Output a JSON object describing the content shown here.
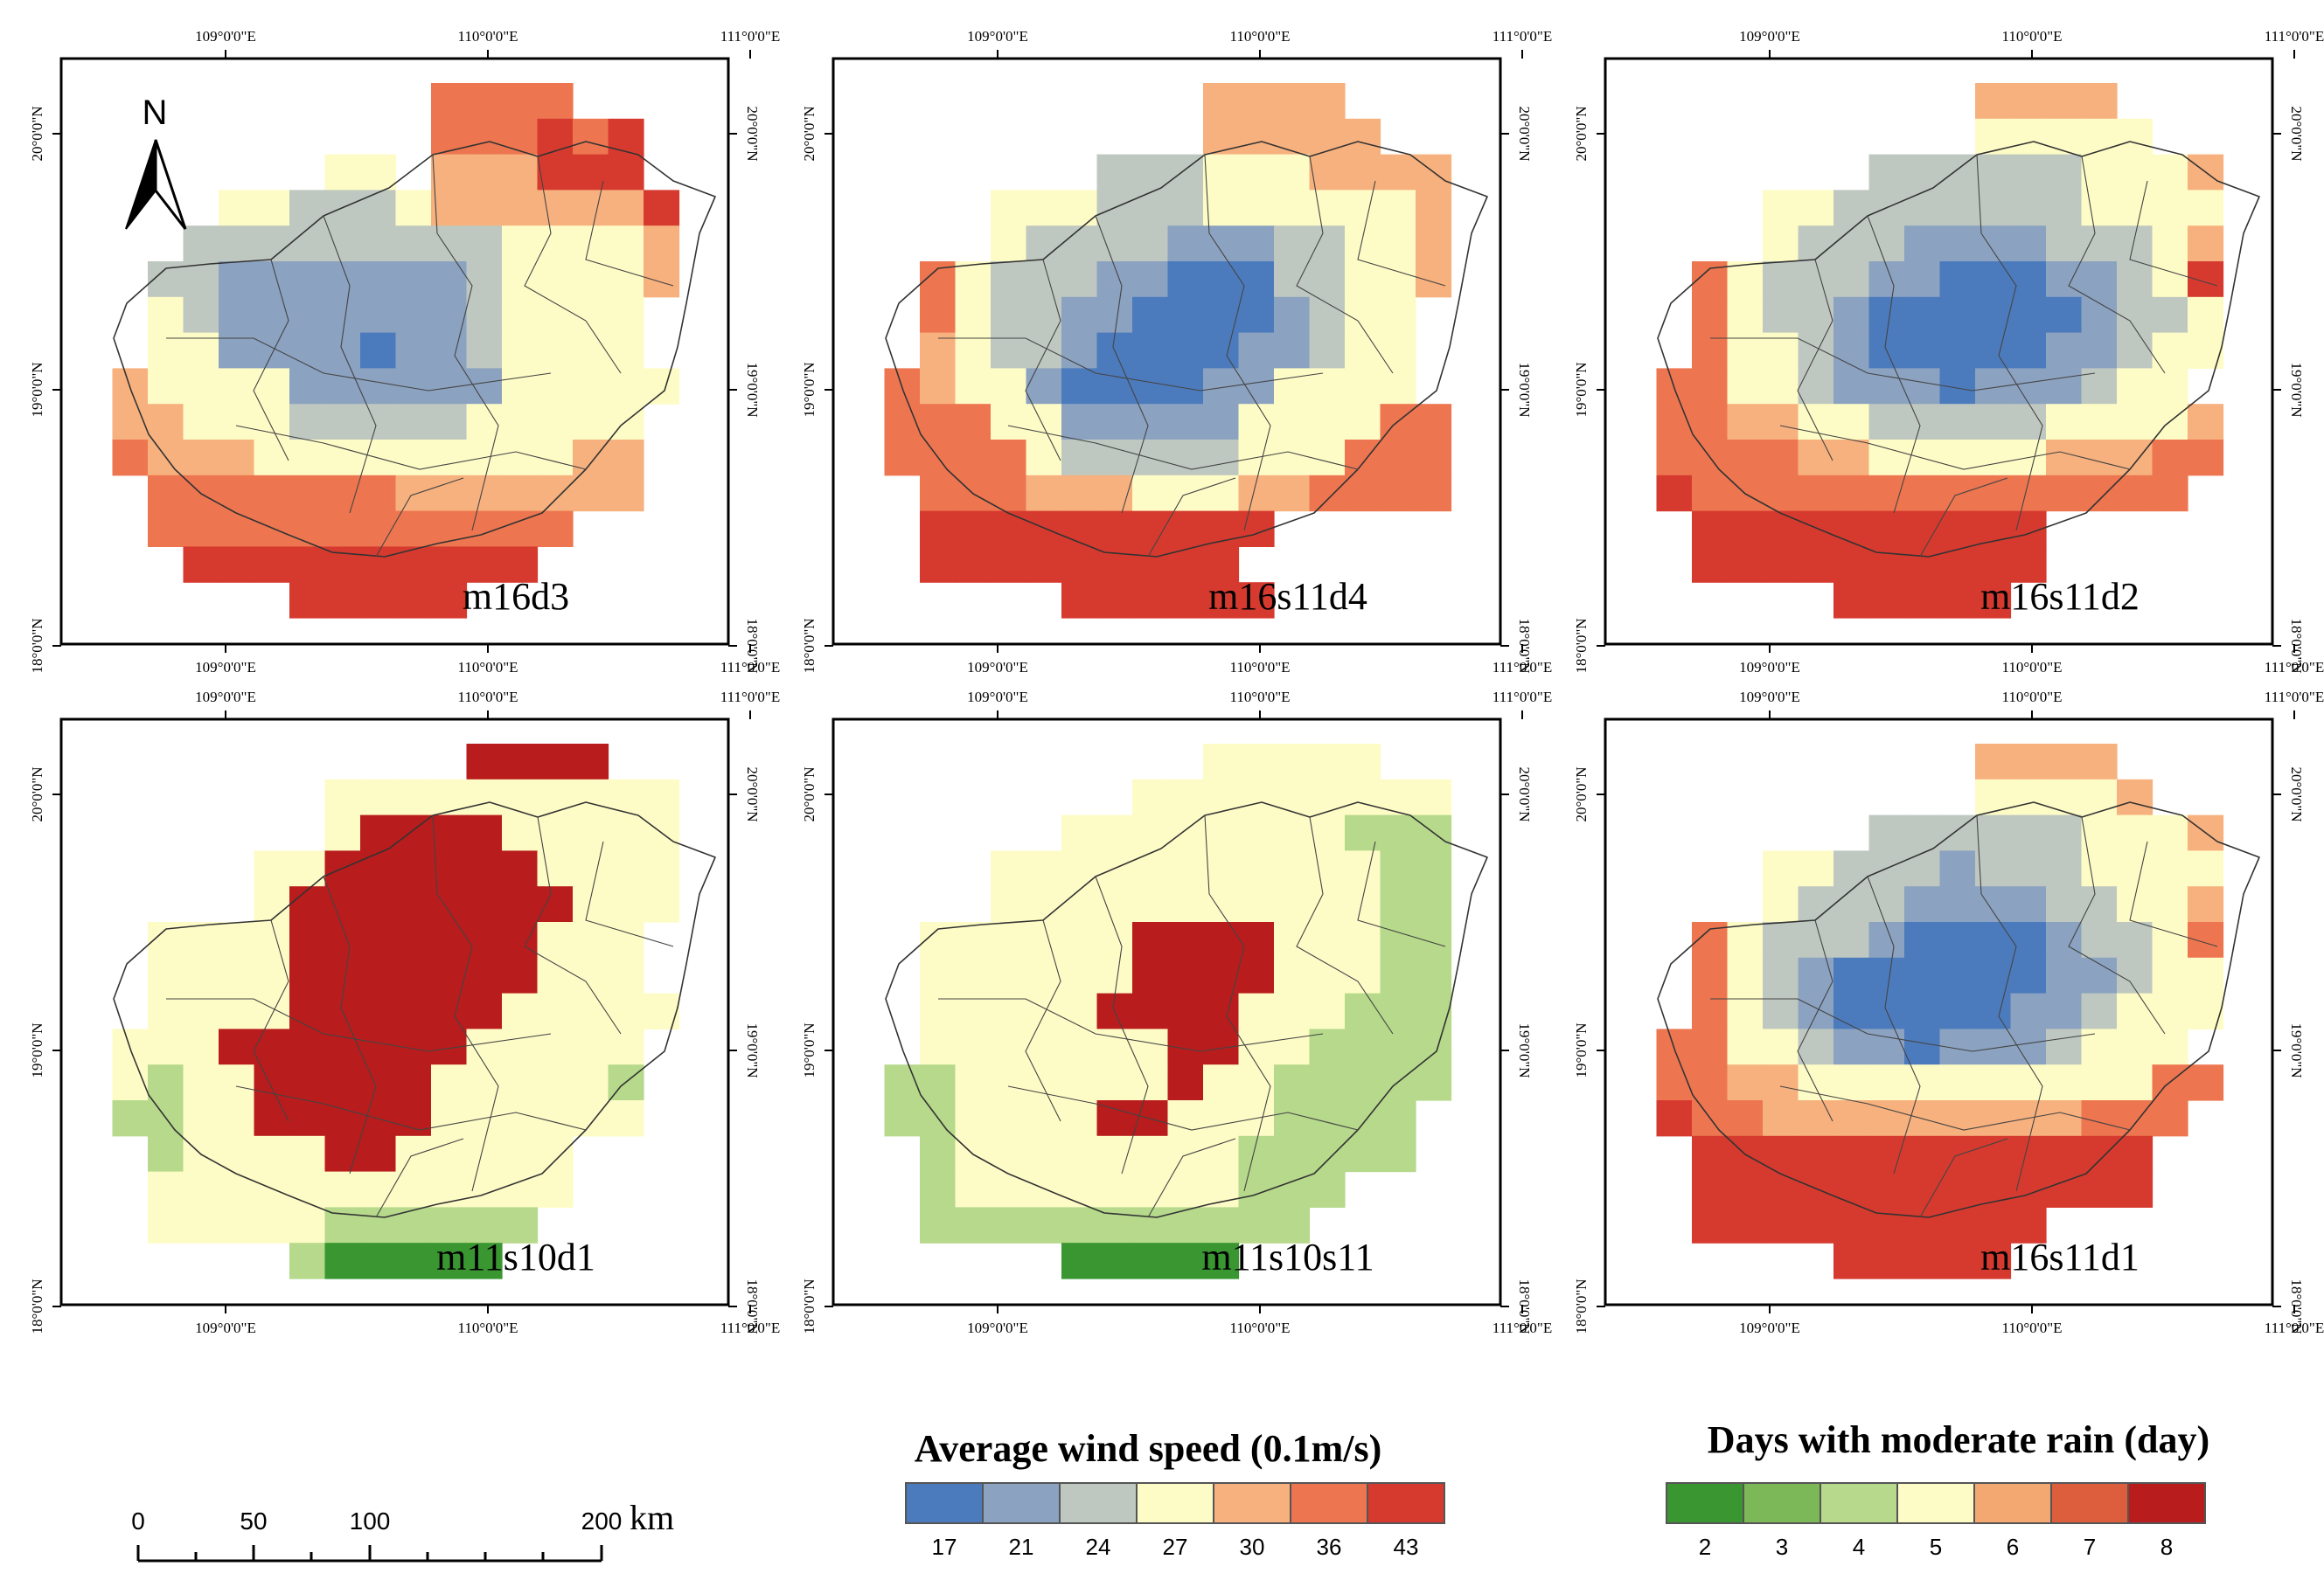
{
  "north_arrow": {
    "label": "N"
  },
  "axes": {
    "lon_labels": [
      "109°0'0\"E",
      "110°0'0\"E",
      "111°0'0\"E"
    ],
    "lat_labels": [
      "18°0'0\"N",
      "19°0'0\"N",
      "20°0'0\"N"
    ]
  },
  "panels": [
    {
      "label": "m16d3",
      "scale": "wind",
      "grid": [
        "..........OOOO...",
        "..........OOOROR.",
        ".......YY.PPPRRR.",
        "....YYGGGYPPPPPPR",
        "...GGGGGGGGGYYYYP",
        "..GGBBBBBBBGYYYYP",
        "..YGBBBBBBBGYYYY.",
        "..YYBBBBDBBGYYYY.",
        ".PYYYYBBBBBBYYYYY",
        ".PPYYYGGGGGYYYYY.",
        ".OPPPYYYYYYYYYPP.",
        "..OOOOOOOPPPPPPP.",
        "..OOOOOOOOOOOO...",
        "...RRRRRRRRRR....",
        "......RRRRR......"
      ]
    },
    {
      "label": "m16s11d4",
      "scale": "wind",
      "grid": [
        "..........PPPP...",
        "..........PPPPP..",
        ".......GGGYYYPPPP",
        "....YYYGGGYYYYYYP",
        "....YGGGGBBBGGYYP",
        "..OYGGGBBDDDGGYYP",
        "..OYGGBBDDDDBGYY.",
        "..PYGGBDDDDBBGYY.",
        ".OPYYBDDDDBBYYYY.",
        ".OOOYYBBBBBYYYYOO",
        ".OOOOYGGGGGYYYOOO",
        "..OOOPPPYYYPPOOOO",
        "..RRRRRRRRRR.....",
        "..RRRRRRRRR......",
        "......RRRRRR....."
      ]
    },
    {
      "label": "m16s11d2",
      "scale": "wind",
      "grid": [
        "..........PPPP...",
        "..........YYYYY..",
        ".......GGGGGGYYYP",
        "....YYGGGGGGGYYYY",
        "....YGGGBBBBGGGYP",
        "..OYGGGBBDDDBBGYR",
        "..OYGGBDDDDDDBGGY",
        "..OYYGBDDDDDBBGYY",
        ".OOYYGBBBDBBBGYY.",
        ".OOPPYYGGGGGYYYYP",
        ".OOOOPPYYYYYPPPOO",
        ".ROOOOOOOOOOOOOO.",
        "..RRRRRRRRRR.....",
        "..RRRRRRRRRR.....",
        "......RRRRR......"
      ]
    },
    {
      "label": "m11s10d1",
      "scale": "rain",
      "grid": [
        "...........RRRR..",
        ".......YYYYYYYYYY",
        ".......YRRRRYYYYY",
        ".....YYRRRRRRYYYY",
        ".....YRRRRRRRRYYY",
        "..YYYYRRRRRRRYYY.",
        "..YYYYRRDRRRRYYY.",
        "..YYYYRRRDRRYYYYY",
        ".YYYRRRRRRRYYYYY.",
        ".YLYYRRRRRYYYYYL.",
        ".LLYYRRRRRYYYYYY.",
        "..LYYYYRRYYYYY...",
        "..YYYYYYYYYYYY...",
        "..YYYYYLLLLLL....",
        "......LGGGGG....."
      ]
    },
    {
      "label": "m11s10s11",
      "scale": "rain",
      "grid": [
        "..........YYYYY..",
        "........YYYYYYYYY",
        "......YYYYYYYYLLL",
        "....YYYYYYYYYYYLL",
        "....YYYYYYYYYYYLL",
        "..YYYYYYRRRRYYYLL",
        "..YYYYYYRRRRYYYLL",
        "..YYYYYRRRRYYYLLL",
        "..YYYYYYYRRYYLLLL",
        ".LLYYYYYYRYYLLLLL",
        ".LLYYYYRRYYYLLLL.",
        "..LYYYYYYYYLLLLL.",
        "..LYYYYYYYYLLL...",
        "..LLLLLLLLLLL....",
        "......GGGGG......"
      ]
    },
    {
      "label": "m16s11d1",
      "scale": "wind",
      "grid": [
        "..........PPPP...",
        "..........YYYYP..",
        ".......GGGGGGYYYP",
        "....YYGGGBGGGYYYY",
        "....YGGGBBBBGGYYP",
        "..OYGGGBDDDDBGGYO",
        "..OYGBDDDDDDBBGYY",
        "..OYGBDDDDDBBGYYY",
        ".OOYYGBBDBBBGYYY.",
        ".OOPPYYYYYYYYYYOO",
        ".ROOPPPPPPPPPOOO.",
        "..RRRRRRRRRRRRR..",
        "..RRRRRRRRRRRRR..",
        "..RRRRRRRRRR.....",
        "......RRRRR......"
      ]
    }
  ],
  "legends": {
    "wind": {
      "title": "Average wind speed (0.1m/s)",
      "ticks": [
        "17",
        "21",
        "24",
        "27",
        "30",
        "36",
        "43"
      ],
      "colors": [
        "#4c7bbd",
        "#8ba2c0",
        "#bfc8c0",
        "#fefcc6",
        "#f7b17e",
        "#ed7650",
        "#d63a2f"
      ]
    },
    "rain": {
      "title": "Days with moderate rain (day)",
      "ticks": [
        "2",
        "3",
        "4",
        "5",
        "6",
        "7",
        "8"
      ],
      "colors": [
        "#3a9631",
        "#7cb758",
        "#b6d98b",
        "#fefcc6",
        "#f4a871",
        "#dc5e3c",
        "#b81c1c"
      ]
    }
  },
  "scale_bar": {
    "ticks": [
      "0",
      "50",
      "100",
      "200"
    ],
    "unit": "km"
  }
}
